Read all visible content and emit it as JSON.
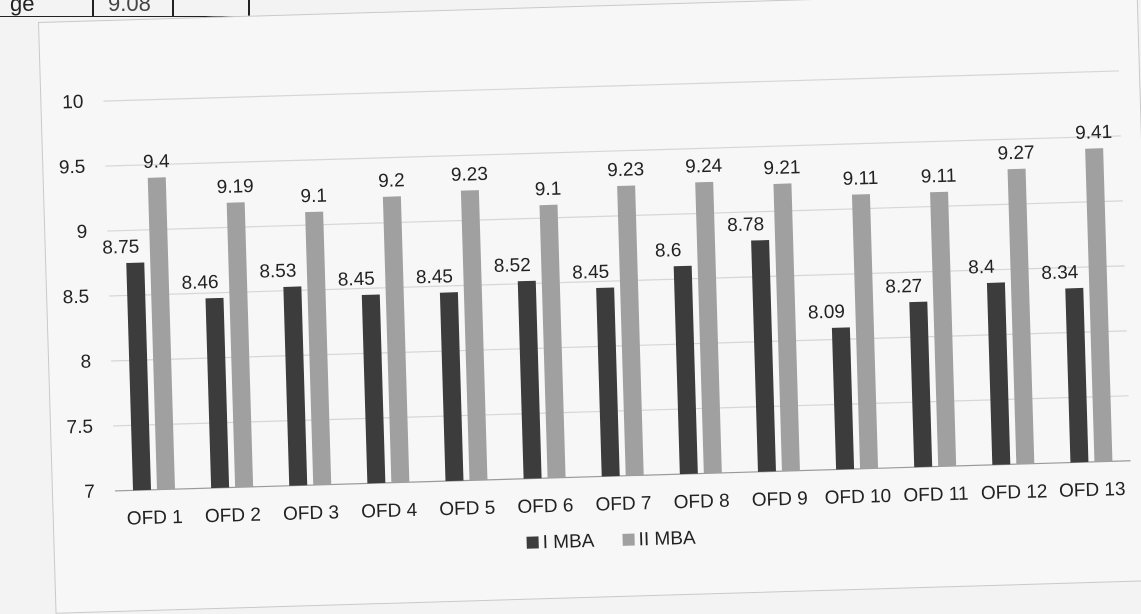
{
  "fragment": {
    "cell_a": "ge",
    "cell_b": "9.08"
  },
  "chart_data": {
    "type": "bar",
    "categories": [
      "OFD 1",
      "OFD 2",
      "OFD 3",
      "OFD 4",
      "OFD 5",
      "OFD 6",
      "OFD 7",
      "OFD 8",
      "OFD 9",
      "OFD 10",
      "OFD 11",
      "OFD 12",
      "OFD 13"
    ],
    "series": [
      {
        "name": "I MBA",
        "values": [
          8.75,
          8.46,
          8.53,
          8.45,
          8.45,
          8.52,
          8.45,
          8.6,
          8.78,
          8.09,
          8.27,
          8.4,
          8.34
        ],
        "color": "#3c3c3c"
      },
      {
        "name": "II MBA",
        "values": [
          9.4,
          9.19,
          9.1,
          9.2,
          9.23,
          9.1,
          9.23,
          9.24,
          9.21,
          9.11,
          9.11,
          9.27,
          9.41
        ],
        "color": "#a0a0a0"
      }
    ],
    "yticks": [
      "7",
      "7.5",
      "8",
      "8.5",
      "9",
      "9.5",
      "10"
    ],
    "ylim": [
      7,
      10
    ],
    "grid": true,
    "legend_position": "bottom"
  }
}
